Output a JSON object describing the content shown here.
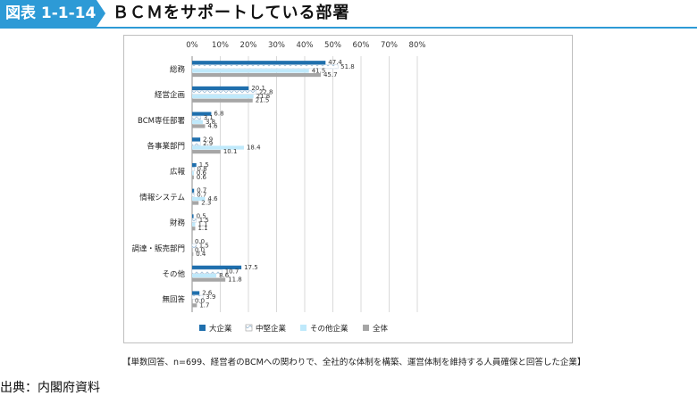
{
  "header": {
    "tag": "図表 1-1-14",
    "title": "ＢＣＭをサポートしている部署"
  },
  "chart_data": {
    "type": "bar",
    "orientation": "horizontal",
    "categories": [
      "総務",
      "経営企画",
      "BCM専任部署",
      "各事業部門",
      "広報",
      "情報システム",
      "財務",
      "調達・販売部門",
      "その他",
      "無回答"
    ],
    "series": [
      {
        "name": "大企業",
        "values": [
          47.4,
          20.1,
          6.8,
          2.9,
          1.5,
          0.7,
          0.5,
          0.0,
          17.5,
          2.6
        ],
        "labels": [
          "47.4",
          "20.1",
          "6.8",
          "2.9",
          "1.5",
          "0.7",
          "0.5",
          "0.0",
          "17.5",
          "2.6"
        ],
        "color": "#1f6fad",
        "pattern": "solid"
      },
      {
        "name": "中堅企業",
        "values": [
          51.8,
          22.8,
          3.1,
          2.9,
          0.8,
          0.7,
          1.5,
          1.5,
          10.7,
          3.9
        ],
        "labels": [
          "51.8",
          "22.8",
          "3.1",
          "2.9",
          "0.8",
          "0.7",
          "1.5",
          "1.5",
          "10.7",
          "3.9"
        ],
        "color": "#ffffff",
        "pattern": "zigzag"
      },
      {
        "name": "その他企業",
        "values": [
          41.5,
          21.8,
          3.8,
          18.4,
          0.6,
          4.6,
          1.1,
          0.0,
          8.6,
          0.0
        ],
        "labels": [
          "41.5",
          "21.8",
          "3.8",
          "18.4",
          "0.6",
          "4.6",
          "1.1",
          "0.0",
          "8.6",
          "0.0"
        ],
        "color": "#bfe9fb",
        "pattern": "solid"
      },
      {
        "name": "全体",
        "values": [
          45.7,
          21.5,
          4.6,
          10.1,
          0.6,
          2.3,
          1.1,
          0.4,
          11.8,
          1.7
        ],
        "labels": [
          "45.7",
          "21.5",
          "4.6",
          "10.1",
          "0.6",
          "2.3",
          "1.1",
          "0.4",
          "11.8",
          "1.7"
        ],
        "color": "#a6a6a6",
        "pattern": "solid"
      }
    ],
    "xlim": [
      0,
      80
    ],
    "xticks": [
      "0%",
      "10%",
      "20%",
      "30%",
      "40%",
      "50%",
      "60%",
      "70%",
      "80%"
    ],
    "grid": true,
    "legend_position": "bottom"
  },
  "note": "【単数回答、n=699、経営者のBCMへの関わりで、全社的な体制を構築、運営体制を維持する人員確保と回答した企業】",
  "source": "出典：内閣府資料"
}
